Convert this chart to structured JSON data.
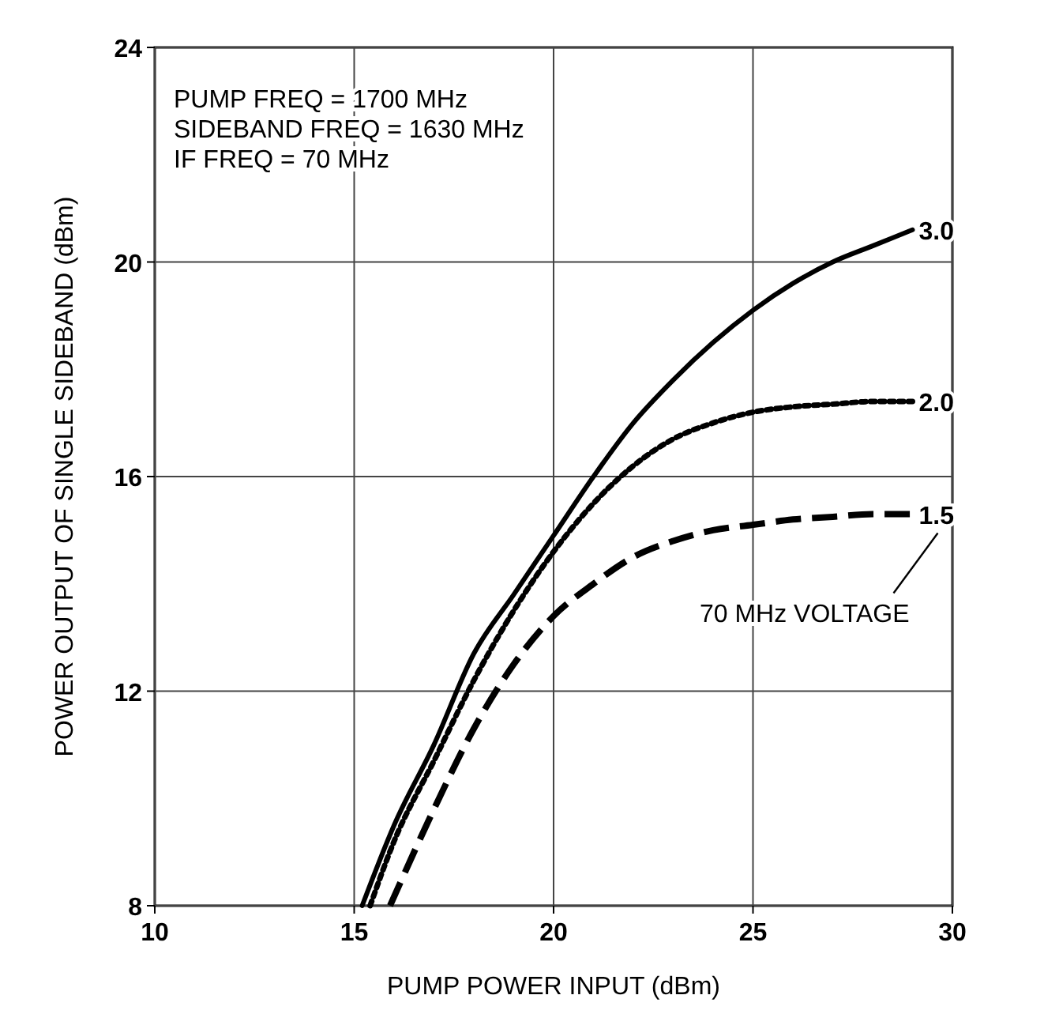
{
  "chart_data": {
    "type": "line",
    "xlabel": "PUMP POWER INPUT (dBm)",
    "ylabel": "POWER OUTPUT OF SINGLE SIDEBAND (dBm)",
    "xlim": [
      10,
      30
    ],
    "xticks": [
      10,
      15,
      20,
      25,
      30
    ],
    "ylim": [
      8,
      24
    ],
    "yticks": [
      8,
      12,
      16,
      20,
      24
    ],
    "grid": true,
    "marker": "none",
    "annotations": [
      "PUMP FREQ = 1700 MHz",
      "SIDEBAND FREQ = 1630 MHz",
      "IF FREQ = 70 MHz",
      "70 MHz VOLTAGE"
    ],
    "series": [
      {
        "name": "3.0",
        "color": "#000000",
        "line_style": "solid",
        "x": [
          15.2,
          16,
          17,
          18,
          19,
          20,
          21,
          22,
          23,
          24,
          25,
          26,
          27,
          28,
          29
        ],
        "values": [
          8,
          9.5,
          11,
          12.7,
          13.8,
          14.9,
          16,
          17,
          17.8,
          18.5,
          19.1,
          19.6,
          20,
          20.3,
          20.6
        ]
      },
      {
        "name": "2.0",
        "color": "#000000",
        "line_style": "dotted",
        "x": [
          15.4,
          16,
          17,
          18,
          19,
          20,
          21,
          22,
          23,
          24,
          25,
          26,
          27,
          28,
          29
        ],
        "values": [
          8,
          9.2,
          10.7,
          12.2,
          13.5,
          14.6,
          15.5,
          16.2,
          16.7,
          17,
          17.2,
          17.3,
          17.35,
          17.4,
          17.4
        ]
      },
      {
        "name": "1.5",
        "color": "#000000",
        "line_style": "dashed",
        "x": [
          15.9,
          17,
          18,
          19,
          20,
          21,
          22,
          23,
          24,
          25,
          26,
          27,
          28,
          29
        ],
        "values": [
          8,
          9.8,
          11.3,
          12.5,
          13.4,
          14,
          14.5,
          14.8,
          15,
          15.1,
          15.2,
          15.25,
          15.3,
          15.3
        ]
      }
    ]
  }
}
